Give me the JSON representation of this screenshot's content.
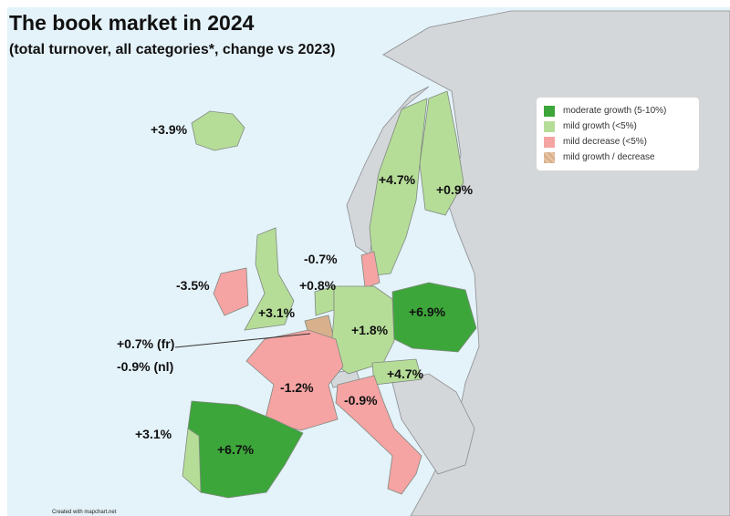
{
  "title": "The book market in 2024",
  "subtitle": "(total turnover, all categories*, change vs 2023)",
  "colors": {
    "sea": "#e4f2f9",
    "land": "#d4d7d9",
    "moderate_growth": "#3da63a",
    "mild_growth": "#b6dd98",
    "mild_decrease": "#f5a3a3",
    "mixed": "#d8b08c"
  },
  "legend": [
    {
      "label": "moderate growth (5-10%)",
      "color": "#3da63a"
    },
    {
      "label": "mild growth (<5%)",
      "color": "#b6dd98"
    },
    {
      "label": "mild decrease (<5%)",
      "color": "#f5a3a3"
    },
    {
      "label": "mild growth / decrease",
      "color": "#d8b08c"
    }
  ],
  "countries": {
    "iceland": "+3.9%",
    "sweden": "+4.7%",
    "finland": "+0.9%",
    "denmark": "-0.7%",
    "netherlands": "+0.8%",
    "ireland": "-3.5%",
    "uk": "+3.1%",
    "germany": "+1.8%",
    "poland": "+6.9%",
    "belgium_fr": "+0.7% (fr)",
    "belgium_nl": "-0.9% (nl)",
    "france": "-1.2%",
    "italy": "-0.9%",
    "austria": "+4.7%",
    "portugal": "+3.1%",
    "spain": "+6.7%"
  },
  "credit": "Created with mapchart.net"
}
